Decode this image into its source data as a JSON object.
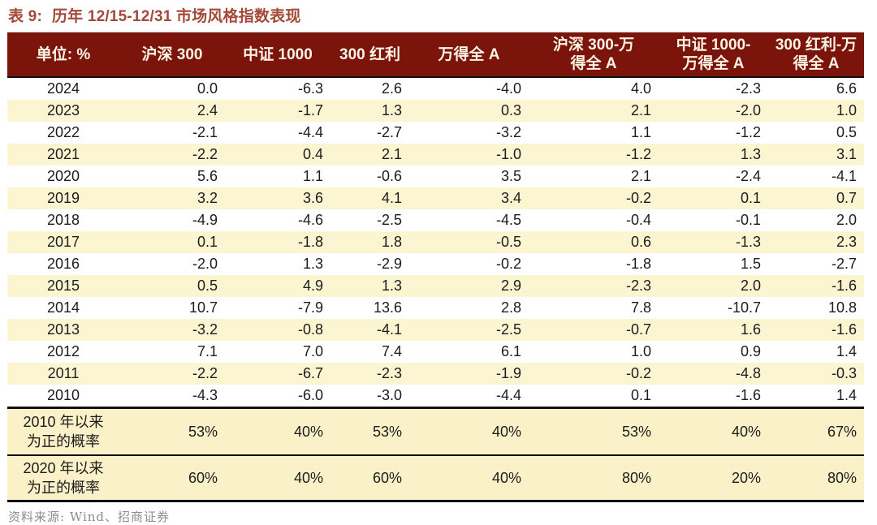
{
  "title": {
    "label": "表 9:",
    "text": "历年 12/15-12/31 市场风格指数表现"
  },
  "table": {
    "columns": [
      {
        "id": "unit",
        "label_lines": [
          "单位: %"
        ]
      },
      {
        "id": "hs300",
        "label_lines": [
          "沪深 300"
        ]
      },
      {
        "id": "zz1000",
        "label_lines": [
          "中证 1000"
        ]
      },
      {
        "id": "hl300",
        "label_lines": [
          "300 红利"
        ]
      },
      {
        "id": "wind-all-a",
        "label_lines": [
          "万得全 A"
        ]
      },
      {
        "id": "hs300-minus-a",
        "label_lines": [
          "沪深 300-万",
          "得全 A"
        ]
      },
      {
        "id": "zz1000-minus-a",
        "label_lines": [
          "中证 1000-",
          "万得全 A"
        ]
      },
      {
        "id": "hl300-minus-a",
        "label_lines": [
          "300 红利-万",
          "得全 A"
        ]
      }
    ],
    "rows": [
      {
        "year": "2024",
        "values": [
          "0.0",
          "-6.3",
          "2.6",
          "-4.0",
          "4.0",
          "-2.3",
          "6.6"
        ]
      },
      {
        "year": "2023",
        "values": [
          "2.4",
          "-1.7",
          "1.3",
          "0.3",
          "2.1",
          "-2.0",
          "1.0"
        ]
      },
      {
        "year": "2022",
        "values": [
          "-2.1",
          "-4.4",
          "-2.7",
          "-3.2",
          "1.1",
          "-1.2",
          "0.5"
        ]
      },
      {
        "year": "2021",
        "values": [
          "-2.2",
          "0.4",
          "2.1",
          "-1.0",
          "-1.2",
          "1.3",
          "3.1"
        ]
      },
      {
        "year": "2020",
        "values": [
          "5.6",
          "1.1",
          "-0.6",
          "3.5",
          "2.1",
          "-2.4",
          "-4.1"
        ]
      },
      {
        "year": "2019",
        "values": [
          "3.2",
          "3.6",
          "4.1",
          "3.4",
          "-0.2",
          "0.1",
          "0.7"
        ]
      },
      {
        "year": "2018",
        "values": [
          "-4.9",
          "-4.6",
          "-2.5",
          "-4.5",
          "-0.4",
          "-0.1",
          "2.0"
        ]
      },
      {
        "year": "2017",
        "values": [
          "0.1",
          "-1.8",
          "1.8",
          "-0.5",
          "0.6",
          "-1.3",
          "2.3"
        ]
      },
      {
        "year": "2016",
        "values": [
          "-2.0",
          "1.3",
          "-2.9",
          "-0.2",
          "-1.8",
          "1.5",
          "-2.7"
        ]
      },
      {
        "year": "2015",
        "values": [
          "0.5",
          "4.9",
          "1.3",
          "2.9",
          "-2.3",
          "2.0",
          "-1.6"
        ]
      },
      {
        "year": "2014",
        "values": [
          "10.7",
          "-7.9",
          "13.6",
          "2.8",
          "7.8",
          "-10.7",
          "10.8"
        ]
      },
      {
        "year": "2013",
        "values": [
          "-3.2",
          "-0.8",
          "-4.1",
          "-2.5",
          "-0.7",
          "1.6",
          "-1.6"
        ]
      },
      {
        "year": "2012",
        "values": [
          "7.1",
          "7.0",
          "7.4",
          "6.1",
          "1.0",
          "0.9",
          "1.4"
        ]
      },
      {
        "year": "2011",
        "values": [
          "-2.2",
          "-6.7",
          "-2.3",
          "-1.9",
          "-0.2",
          "-4.8",
          "-0.3"
        ]
      },
      {
        "year": "2010",
        "values": [
          "-4.3",
          "-6.0",
          "-3.0",
          "-4.4",
          "0.1",
          "-1.6",
          "1.4"
        ]
      }
    ],
    "summary_rows": [
      {
        "label_lines": [
          "2010 年以来",
          "为正的概率"
        ],
        "values": [
          "53%",
          "40%",
          "53%",
          "40%",
          "53%",
          "40%",
          "67%"
        ]
      },
      {
        "label_lines": [
          "2020 年以来",
          "为正的概率"
        ],
        "values": [
          "60%",
          "40%",
          "60%",
          "40%",
          "80%",
          "20%",
          "80%"
        ]
      }
    ]
  },
  "source": "资料来源: Wind、招商证券",
  "colors": {
    "title_text": "#A3493A",
    "header_background": "#7B150C",
    "header_text": "#FCF4E4",
    "stripe_row": "#FCF5D2",
    "summary_row": "#FAF1C8",
    "body_text": "#1c1c1c",
    "source_text": "#8d8d8d",
    "divider": "#101010"
  }
}
